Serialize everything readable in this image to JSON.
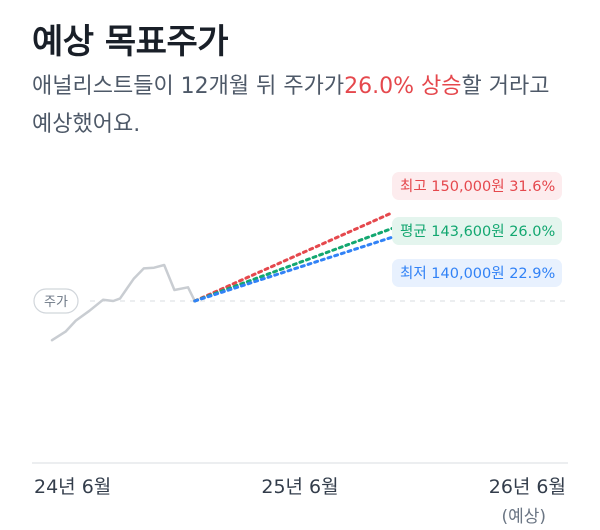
{
  "header": {
    "title": "예상 목표주가",
    "subtitle_before": "애널리스트들이 12개월 뒤 주가가",
    "subtitle_highlight": "26.0% 상승",
    "subtitle_after": "할 거라고 예상했어요."
  },
  "colors": {
    "price_line": "#c9cdd2",
    "high": "#e5484d",
    "avg": "#12a770",
    "low": "#3182f6",
    "text_primary": "#191f28",
    "text_secondary": "#4e5968"
  },
  "chart_data": {
    "type": "line",
    "title": "예상 목표주가",
    "x_ticks": [
      {
        "label": "24년 6월",
        "sub": ""
      },
      {
        "label": "25년 6월",
        "sub": ""
      },
      {
        "label": "26년 6월",
        "sub": "(예상)"
      }
    ],
    "current_price_label": "주가",
    "price_history": [
      {
        "t": 0.0,
        "v": 98000
      },
      {
        "t": 0.04,
        "v": 101500
      },
      {
        "t": 0.07,
        "v": 106000
      },
      {
        "t": 0.11,
        "v": 110000
      },
      {
        "t": 0.15,
        "v": 114500
      },
      {
        "t": 0.18,
        "v": 114000
      },
      {
        "t": 0.2,
        "v": 115000
      },
      {
        "t": 0.24,
        "v": 123000
      },
      {
        "t": 0.27,
        "v": 127300
      },
      {
        "t": 0.3,
        "v": 127600
      },
      {
        "t": 0.33,
        "v": 128700
      },
      {
        "t": 0.36,
        "v": 118500
      },
      {
        "t": 0.4,
        "v": 119600
      },
      {
        "t": 0.42,
        "v": 114000
      }
    ],
    "current_price": 114000,
    "forecast_start_t": 0.42,
    "forecast_end_t": 1.0,
    "targets": [
      {
        "name": "최고",
        "value": 150000,
        "value_label": "150,000원",
        "change": "31.6%",
        "kind": "high"
      },
      {
        "name": "평균",
        "value": 143600,
        "value_label": "143,600원",
        "change": "26.0%",
        "kind": "avg"
      },
      {
        "name": "최저",
        "value": 140000,
        "value_label": "140,000원",
        "change": "22.9%",
        "kind": "low"
      }
    ]
  }
}
